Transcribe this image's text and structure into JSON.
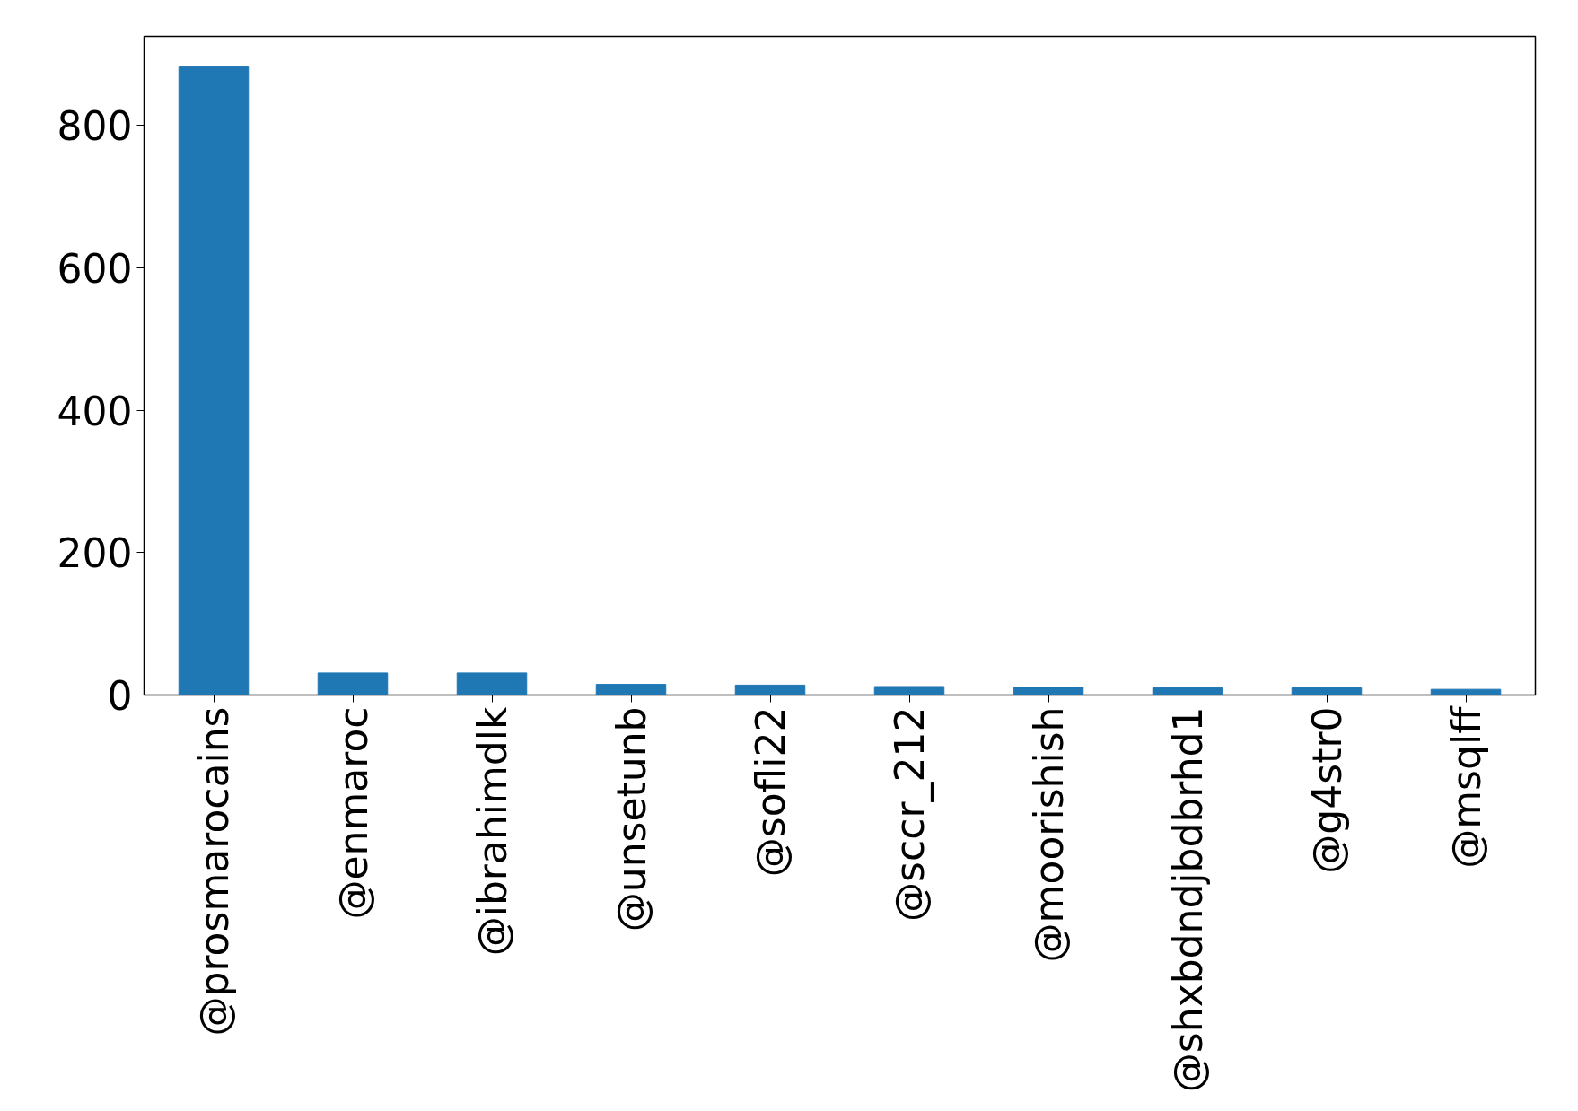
{
  "chart_data": {
    "type": "bar",
    "categories": [
      "@prosmarocains",
      "@enmaroc",
      "@ibrahimdlk",
      "@unsetunb",
      "@sofli22",
      "@sccr_212",
      "@moorishish",
      "@shxbdndjbdbrhd1",
      "@g4str0",
      "@msqlff"
    ],
    "values": [
      882,
      31,
      31,
      15,
      14,
      12,
      11,
      10,
      10,
      8
    ],
    "color": "#1f77b4",
    "ylim": [
      0,
      925
    ],
    "yticks": [
      0,
      200,
      400,
      600,
      800
    ],
    "grid": false
  }
}
